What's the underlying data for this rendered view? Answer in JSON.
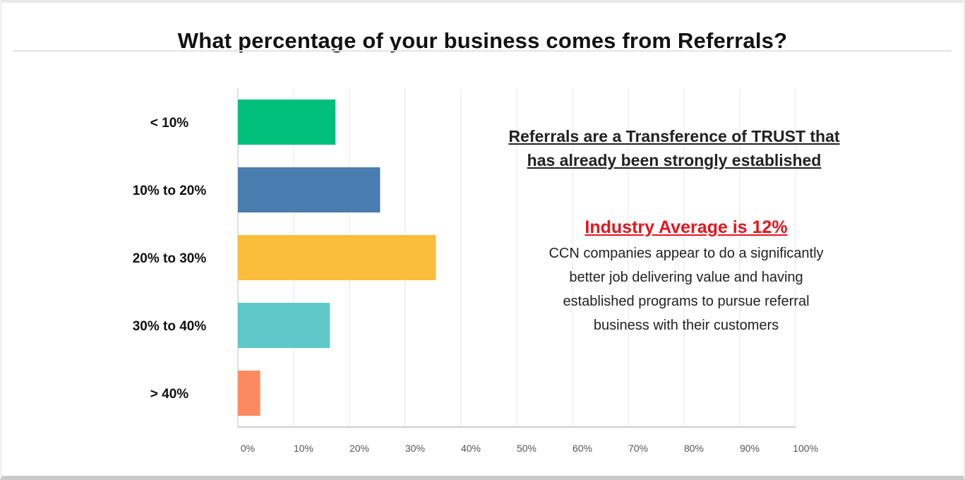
{
  "chart_data": {
    "type": "bar",
    "orientation": "horizontal",
    "title": "What percentage of your business comes from Referrals?",
    "categories": [
      "< 10%",
      "10% to 20%",
      "20% to 30%",
      "30% to 40%",
      "> 40%"
    ],
    "values": [
      17.5,
      25.5,
      35.5,
      16.5,
      4
    ],
    "colors": [
      "#00bf7b",
      "#4a7db0",
      "#fbbd3c",
      "#5fc8c8",
      "#fd8a5f"
    ],
    "xlim": [
      0,
      100
    ],
    "xticks": [
      "0%",
      "10%",
      "20%",
      "30%",
      "40%",
      "50%",
      "60%",
      "70%",
      "80%",
      "90%",
      "100%"
    ],
    "grid": true
  },
  "annotations": {
    "trust_note": "Referrals are a Transference of  TRUST that\nhas already been strongly established",
    "industry_average_heading": "Industry Average is 12%",
    "industry_average_body": "CCN companies appear to do a significantly\nbetter job delivering value and having\nestablished programs to pursue referral\nbusiness with their customers"
  }
}
